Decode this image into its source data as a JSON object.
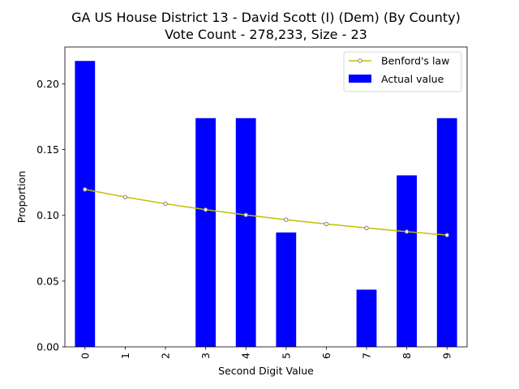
{
  "chart_data": {
    "type": "bar",
    "title_line1": "GA US House District 13 - David Scott (I) (Dem) (By County)",
    "title_line2": "Vote Count - 278,233, Size - 23",
    "xlabel": "Second Digit Value",
    "ylabel": "Proportion",
    "categories": [
      "0",
      "1",
      "2",
      "3",
      "4",
      "5",
      "6",
      "7",
      "8",
      "9"
    ],
    "ylim": [
      0,
      0.228
    ],
    "yticks": [
      0.0,
      0.05,
      0.1,
      0.15,
      0.2
    ],
    "ytick_labels": [
      "0.00",
      "0.05",
      "0.10",
      "0.15",
      "0.20"
    ],
    "grid": false,
    "legend_position": "top-right",
    "series": [
      {
        "name": "Actual value",
        "kind": "bar",
        "color": "#0000ff",
        "values": [
          0.2174,
          0.0,
          0.0,
          0.1739,
          0.1739,
          0.087,
          0.0,
          0.0435,
          0.1304,
          0.1739
        ]
      },
      {
        "name": "Benford's law",
        "kind": "line",
        "color": "#bfbf00",
        "marker_color": "#808080",
        "values": [
          0.1197,
          0.1139,
          0.1088,
          0.1043,
          0.1003,
          0.0967,
          0.0934,
          0.0904,
          0.0876,
          0.085
        ]
      }
    ]
  }
}
